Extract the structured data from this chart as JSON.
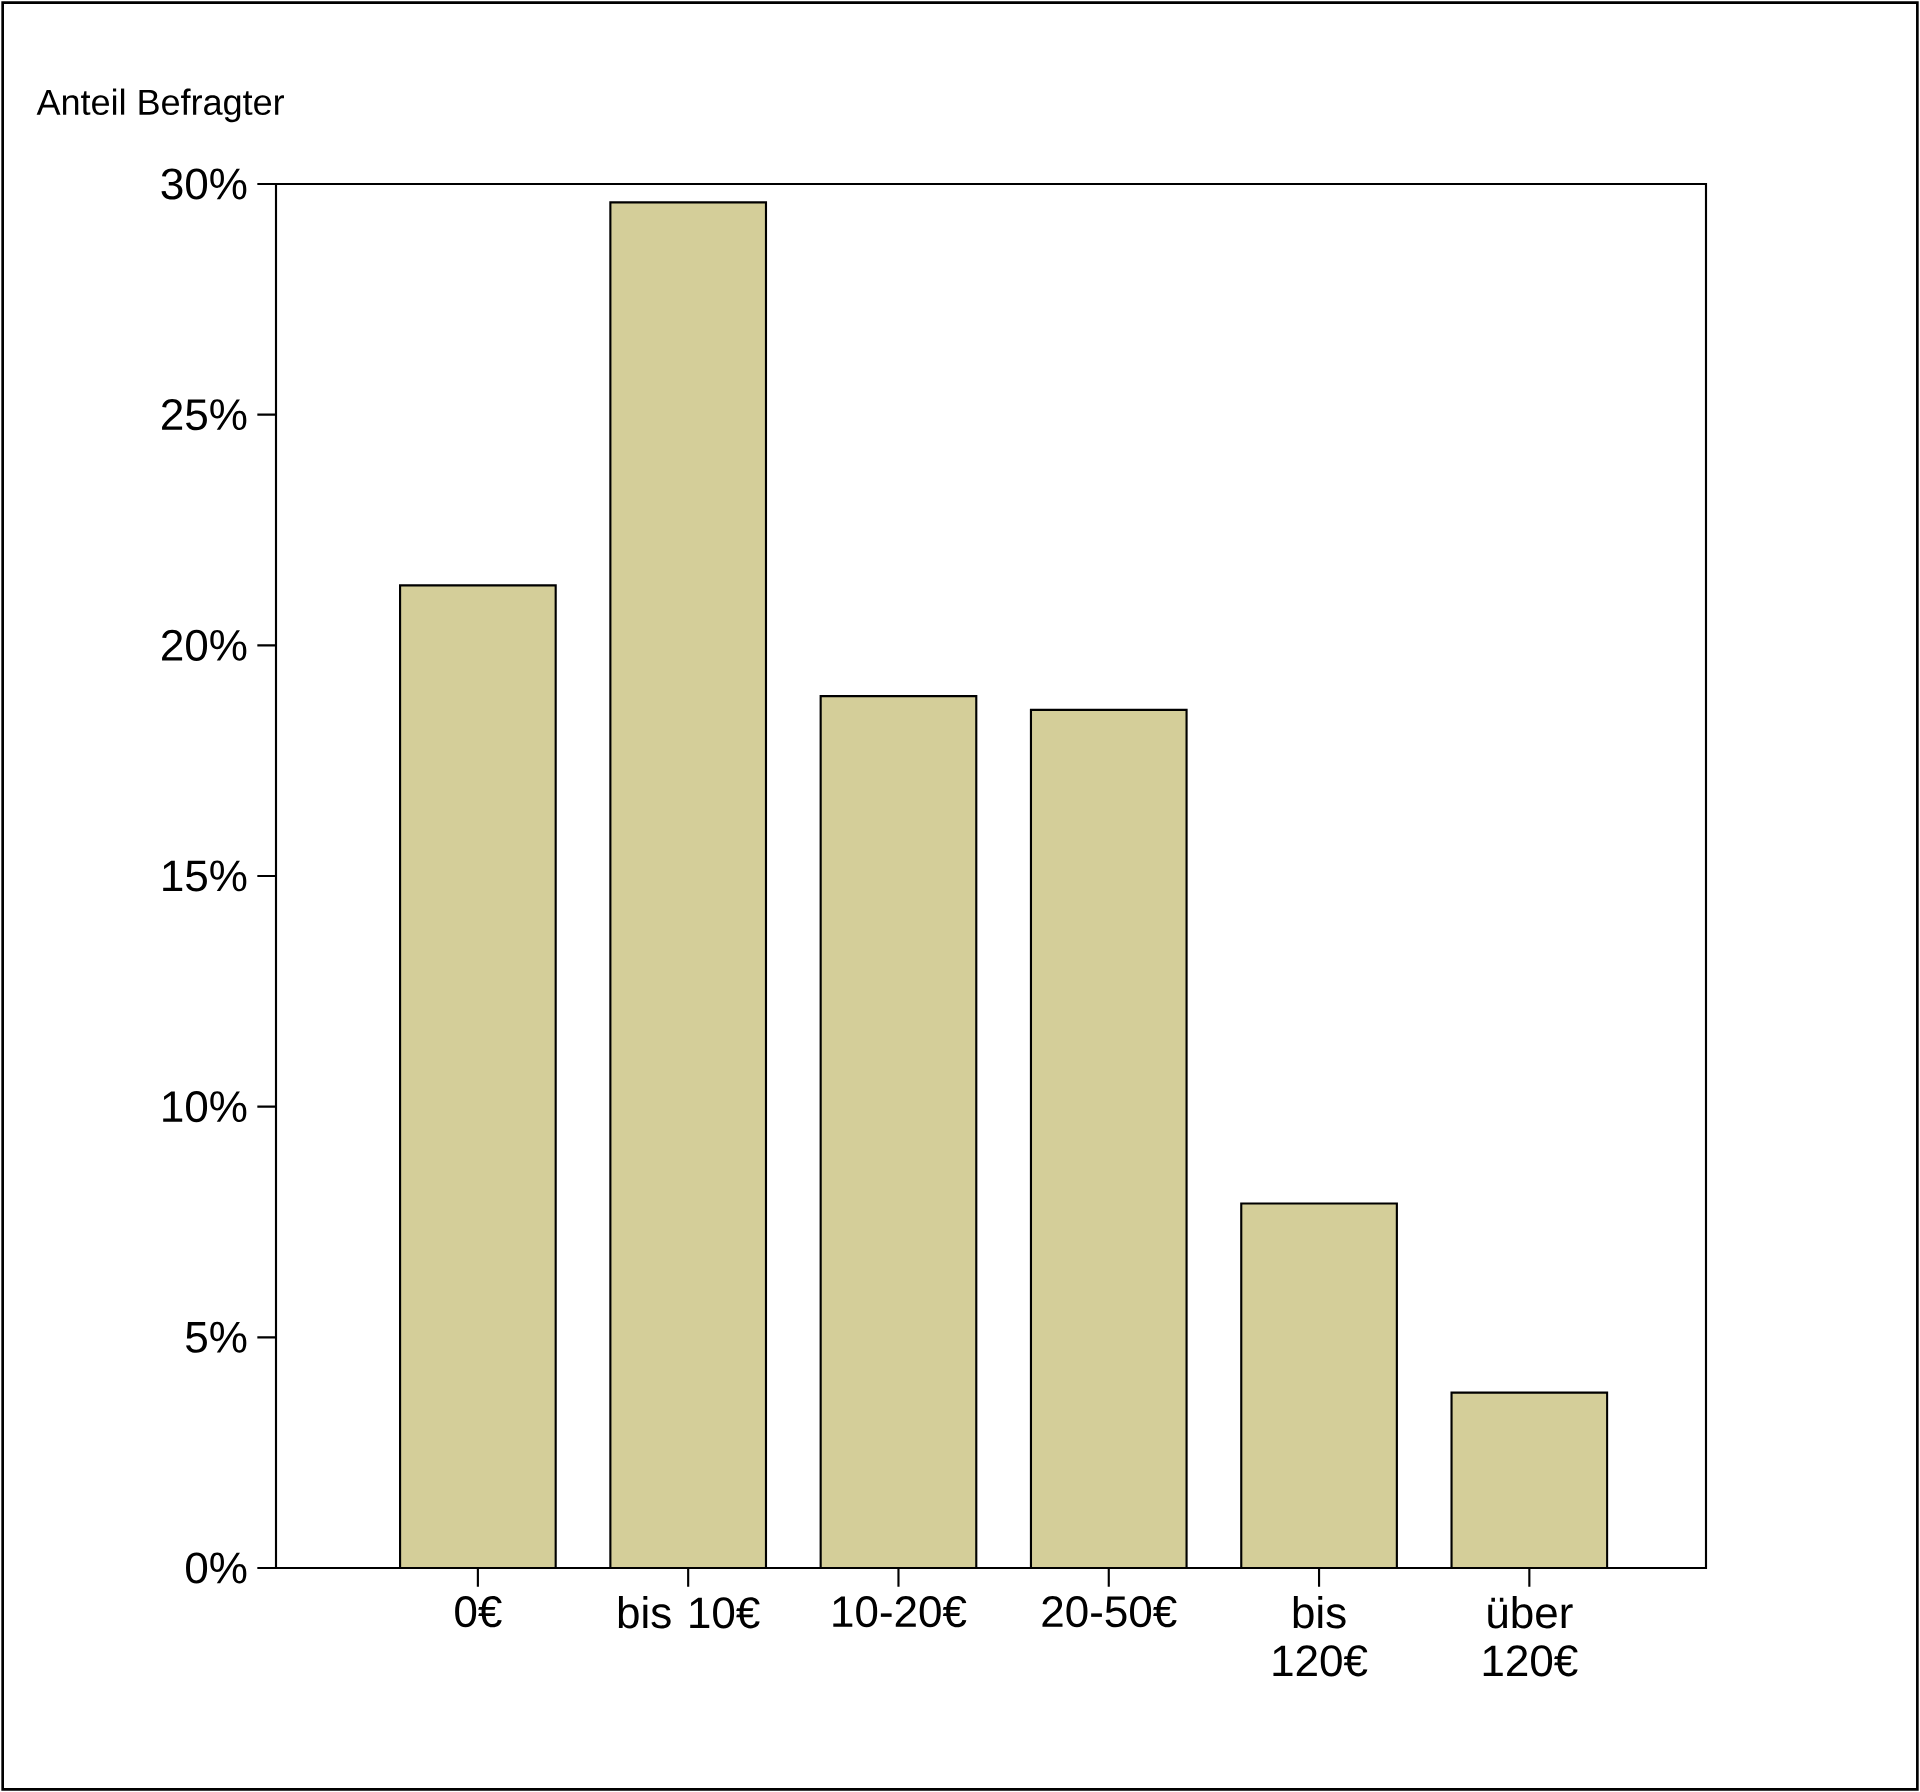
{
  "chart_data": {
    "type": "bar",
    "ylabel": "Anteil Befragter",
    "categories": [
      "0€",
      "bis 10€",
      "10-20€",
      "20-50€",
      "bis 120€",
      "über 120€"
    ],
    "values": [
      21.3,
      29.6,
      18.9,
      18.6,
      7.9,
      3.8
    ],
    "color": "#d4ce99",
    "ylim": [
      0,
      30
    ],
    "yticks": [
      {
        "value": 0,
        "label": "0%"
      },
      {
        "value": 5,
        "label": "5%"
      },
      {
        "value": 10,
        "label": "10%"
      },
      {
        "value": 15,
        "label": "15%"
      },
      {
        "value": 20,
        "label": "20%"
      },
      {
        "value": 25,
        "label": "25%"
      },
      {
        "value": 30,
        "label": "30%"
      }
    ]
  }
}
